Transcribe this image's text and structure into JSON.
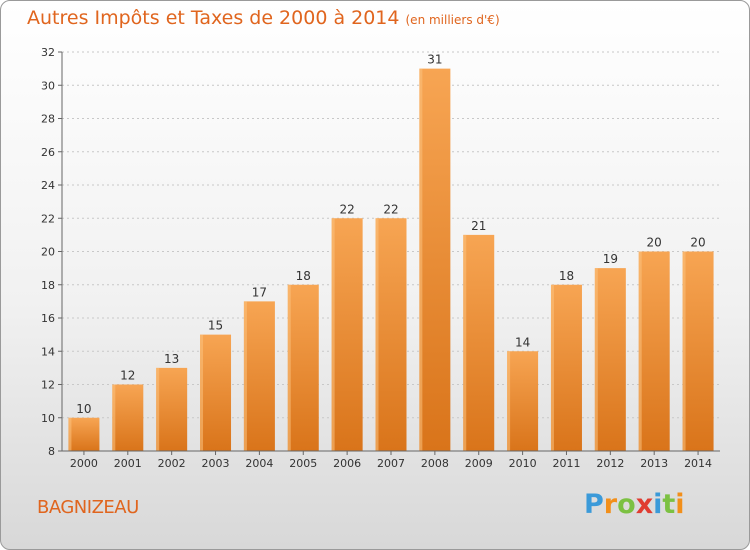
{
  "header": {
    "title": "Autres Impôts et Taxes de 2000 à 2014",
    "unit": "(en milliers d'€)"
  },
  "footer": {
    "place": "BAGNIZEAU",
    "logo_text": "Proxiti"
  },
  "colors": {
    "title": "#e0651e",
    "bar_top": "#f7a553",
    "bar_bottom": "#d9741a"
  },
  "chart_data": {
    "type": "bar",
    "categories": [
      "2000",
      "2001",
      "2002",
      "2003",
      "2004",
      "2005",
      "2006",
      "2007",
      "2008",
      "2009",
      "2010",
      "2011",
      "2012",
      "2013",
      "2014"
    ],
    "values": [
      10,
      12,
      13,
      15,
      17,
      18,
      22,
      22,
      31,
      21,
      14,
      18,
      19,
      20,
      20
    ],
    "title": "Autres Impôts et Taxes de 2000 à 2014",
    "subtitle": "(en milliers d'€)",
    "ylim": [
      8,
      32
    ],
    "yticks": [
      8,
      10,
      12,
      14,
      16,
      18,
      20,
      22,
      24,
      26,
      28,
      30,
      32
    ],
    "grid": true
  }
}
